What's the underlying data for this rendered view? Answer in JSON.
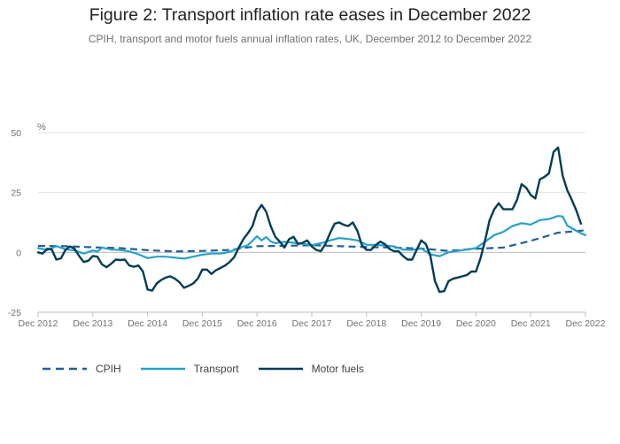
{
  "title": "Figure 2: Transport inflation rate eases in December 2022",
  "subtitle": "CPIH, transport and motor fuels annual inflation rates, UK, December 2012 to December 2022",
  "chart_data": {
    "type": "line",
    "unit_label": "%",
    "ylim": [
      -25,
      50
    ],
    "yticks": [
      50,
      25,
      0,
      -25
    ],
    "xlim": [
      0,
      120
    ],
    "xticks": [
      {
        "pos": 0,
        "label": "Dec 2012"
      },
      {
        "pos": 12,
        "label": "Dec 2013"
      },
      {
        "pos": 24,
        "label": "Dec 2014"
      },
      {
        "pos": 36,
        "label": "Dec 2015"
      },
      {
        "pos": 48,
        "label": "Dec 2016"
      },
      {
        "pos": 60,
        "label": "Dec 2017"
      },
      {
        "pos": 72,
        "label": "Dec 2018"
      },
      {
        "pos": 84,
        "label": "Dec 2019"
      },
      {
        "pos": 96,
        "label": "Dec 2020"
      },
      {
        "pos": 108,
        "label": "Dec 2021"
      },
      {
        "pos": 120,
        "label": "Dec 2022"
      }
    ],
    "grid": true,
    "legend_position": "bottom-left",
    "series": [
      {
        "name": "CPIH",
        "color": "#206095",
        "dash": "dashed",
        "points": [
          [
            0,
            2.7
          ],
          [
            6,
            2.6
          ],
          [
            12,
            2.1
          ],
          [
            18,
            1.8
          ],
          [
            24,
            0.9
          ],
          [
            30,
            0.4
          ],
          [
            36,
            0.6
          ],
          [
            42,
            1.0
          ],
          [
            48,
            2.6
          ],
          [
            54,
            2.7
          ],
          [
            60,
            3.0
          ],
          [
            66,
            2.6
          ],
          [
            72,
            2.2
          ],
          [
            78,
            2.0
          ],
          [
            84,
            1.6
          ],
          [
            90,
            0.6
          ],
          [
            96,
            1.5
          ],
          [
            102,
            2.0
          ],
          [
            108,
            4.8
          ],
          [
            114,
            8.2
          ],
          [
            120,
            9.2
          ]
        ]
      },
      {
        "name": "Transport",
        "color": "#27A0CC",
        "dash": "solid",
        "points": [
          [
            0,
            1.8
          ],
          [
            2,
            1.0
          ],
          [
            4,
            2.6
          ],
          [
            6,
            1.3
          ],
          [
            8,
            0.8
          ],
          [
            10,
            -0.5
          ],
          [
            12,
            0.8
          ],
          [
            13,
            0.3
          ],
          [
            14,
            2.0
          ],
          [
            16,
            1.2
          ],
          [
            18,
            1.0
          ],
          [
            20,
            0.4
          ],
          [
            22,
            -0.8
          ],
          [
            24,
            -2.4
          ],
          [
            26,
            -1.8
          ],
          [
            28,
            -1.8
          ],
          [
            30,
            -2.2
          ],
          [
            32,
            -2.6
          ],
          [
            34,
            -1.8
          ],
          [
            36,
            -1.0
          ],
          [
            38,
            -0.5
          ],
          [
            40,
            -0.5
          ],
          [
            42,
            0.2
          ],
          [
            44,
            1.8
          ],
          [
            46,
            3.0
          ],
          [
            48,
            6.7
          ],
          [
            49,
            5.0
          ],
          [
            50,
            6.4
          ],
          [
            51,
            4.6
          ],
          [
            52,
            3.8
          ],
          [
            54,
            4.4
          ],
          [
            56,
            4.0
          ],
          [
            58,
            3.6
          ],
          [
            60,
            3.0
          ],
          [
            62,
            3.8
          ],
          [
            64,
            5.0
          ],
          [
            66,
            6.0
          ],
          [
            68,
            5.6
          ],
          [
            70,
            5.0
          ],
          [
            72,
            3.2
          ],
          [
            74,
            3.1
          ],
          [
            76,
            2.9
          ],
          [
            78,
            2.5
          ],
          [
            80,
            1.2
          ],
          [
            82,
            1.0
          ],
          [
            84,
            1.6
          ],
          [
            86,
            -0.8
          ],
          [
            88,
            -1.6
          ],
          [
            90,
            0.0
          ],
          [
            92,
            0.6
          ],
          [
            94,
            1.2
          ],
          [
            96,
            1.8
          ],
          [
            98,
            4.5
          ],
          [
            100,
            7.2
          ],
          [
            102,
            8.6
          ],
          [
            104,
            11.0
          ],
          [
            106,
            12.2
          ],
          [
            108,
            11.6
          ],
          [
            110,
            13.5
          ],
          [
            112,
            13.9
          ],
          [
            114,
            15.2
          ],
          [
            115,
            15.0
          ],
          [
            116,
            11.2
          ],
          [
            118,
            9.0
          ],
          [
            119,
            8.0
          ],
          [
            120,
            7.2
          ]
        ]
      },
      {
        "name": "Motor fuels",
        "color": "#003C57",
        "dash": "solid",
        "points": [
          [
            0,
            0.0
          ],
          [
            1,
            -0.5
          ],
          [
            2,
            1.5
          ],
          [
            3,
            1.2
          ],
          [
            4,
            -3.0
          ],
          [
            5,
            -2.5
          ],
          [
            6,
            1.0
          ],
          [
            7,
            2.5
          ],
          [
            8,
            1.5
          ],
          [
            9,
            -1.5
          ],
          [
            10,
            -4.0
          ],
          [
            11,
            -3.5
          ],
          [
            12,
            -1.5
          ],
          [
            13,
            -1.8
          ],
          [
            14,
            -5.0
          ],
          [
            15,
            -6.2
          ],
          [
            16,
            -4.8
          ],
          [
            17,
            -3.0
          ],
          [
            18,
            -3.2
          ],
          [
            19,
            -3.0
          ],
          [
            20,
            -5.5
          ],
          [
            21,
            -6.0
          ],
          [
            22,
            -5.5
          ],
          [
            23,
            -8.0
          ],
          [
            24,
            -15.5
          ],
          [
            25,
            -16.0
          ],
          [
            26,
            -13.0
          ],
          [
            27,
            -11.5
          ],
          [
            28,
            -10.5
          ],
          [
            29,
            -10.0
          ],
          [
            30,
            -11.0
          ],
          [
            31,
            -12.5
          ],
          [
            32,
            -14.8
          ],
          [
            33,
            -14.0
          ],
          [
            34,
            -13.0
          ],
          [
            35,
            -11.0
          ],
          [
            36,
            -7.2
          ],
          [
            37,
            -7.2
          ],
          [
            38,
            -9.0
          ],
          [
            39,
            -7.5
          ],
          [
            40,
            -6.5
          ],
          [
            41,
            -5.5
          ],
          [
            42,
            -4.0
          ],
          [
            43,
            -2.0
          ],
          [
            44,
            2.0
          ],
          [
            45,
            5.5
          ],
          [
            46,
            8.0
          ],
          [
            47,
            11.0
          ],
          [
            48,
            17.0
          ],
          [
            49,
            19.8
          ],
          [
            50,
            17.0
          ],
          [
            51,
            11.0
          ],
          [
            52,
            6.5
          ],
          [
            53,
            4.5
          ],
          [
            54,
            2.0
          ],
          [
            55,
            5.5
          ],
          [
            56,
            6.5
          ],
          [
            57,
            3.5
          ],
          [
            58,
            4.0
          ],
          [
            59,
            5.0
          ],
          [
            60,
            2.5
          ],
          [
            61,
            1.0
          ],
          [
            62,
            0.5
          ],
          [
            63,
            3.5
          ],
          [
            64,
            8.0
          ],
          [
            65,
            12.0
          ],
          [
            66,
            12.5
          ],
          [
            67,
            11.5
          ],
          [
            68,
            11.0
          ],
          [
            69,
            12.5
          ],
          [
            70,
            9.0
          ],
          [
            71,
            3.0
          ],
          [
            72,
            1.0
          ],
          [
            73,
            1.0
          ],
          [
            74,
            3.0
          ],
          [
            75,
            4.5
          ],
          [
            76,
            3.5
          ],
          [
            77,
            1.5
          ],
          [
            78,
            0.5
          ],
          [
            79,
            0.5
          ],
          [
            80,
            -1.5
          ],
          [
            81,
            -3.0
          ],
          [
            82,
            -3.0
          ],
          [
            83,
            1.0
          ],
          [
            84,
            5.0
          ],
          [
            85,
            3.5
          ],
          [
            86,
            -1.5
          ],
          [
            87,
            -12.0
          ],
          [
            88,
            -16.5
          ],
          [
            89,
            -16.2
          ],
          [
            90,
            -12.0
          ],
          [
            91,
            -11.0
          ],
          [
            92,
            -10.5
          ],
          [
            93,
            -10.0
          ],
          [
            94,
            -9.5
          ],
          [
            95,
            -8.0
          ],
          [
            96,
            -8.0
          ],
          [
            97,
            -2.5
          ],
          [
            98,
            5.0
          ],
          [
            99,
            13.5
          ],
          [
            100,
            18.0
          ],
          [
            101,
            20.5
          ],
          [
            102,
            18.0
          ],
          [
            103,
            18.0
          ],
          [
            104,
            18.0
          ],
          [
            105,
            22.0
          ],
          [
            106,
            28.5
          ],
          [
            107,
            27.0
          ],
          [
            108,
            24.0
          ],
          [
            109,
            22.5
          ],
          [
            110,
            30.5
          ],
          [
            111,
            31.5
          ],
          [
            112,
            33.0
          ],
          [
            113,
            42.0
          ],
          [
            114,
            43.8
          ],
          [
            115,
            32.0
          ],
          [
            116,
            26.0
          ],
          [
            117,
            22.0
          ],
          [
            118,
            17.5
          ],
          [
            119,
            12.0
          ]
        ]
      }
    ]
  }
}
